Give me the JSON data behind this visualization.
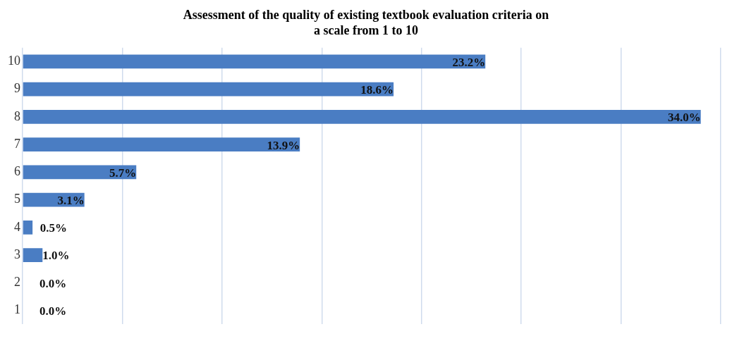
{
  "chart_data": {
    "type": "bar",
    "orientation": "horizontal",
    "title": "Assessment of the quality of existing textbook evaluation criteria on a scale from 1 to 10",
    "categories": [
      "10",
      "9",
      "8",
      "7",
      "6",
      "5",
      "4",
      "3",
      "2",
      "1"
    ],
    "values": [
      23.2,
      18.6,
      34.0,
      13.9,
      5.7,
      3.1,
      0.5,
      1.0,
      0.0,
      0.0
    ],
    "value_labels": [
      "23.2%",
      "18.6%",
      "34.0%",
      "13.9%",
      "5.7%",
      "3.1%",
      "0.5%",
      "1.0%",
      "0.0%",
      "0.0%"
    ],
    "color": "#4a7dc3",
    "grid": "x",
    "tick_labels": "y"
  }
}
